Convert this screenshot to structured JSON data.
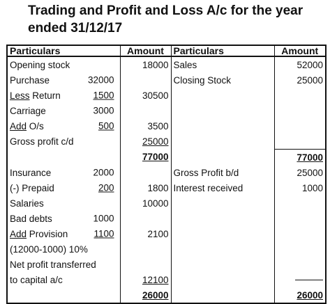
{
  "title": {
    "line1": "Trading and Profit and Loss A/c for the year",
    "line2": "ended 31/12/17"
  },
  "headers": {
    "left_particulars": "Particulars",
    "left_amount": "Amount",
    "right_particulars": "Particulars",
    "right_amount": "Amount"
  },
  "rows": [
    {
      "lp": "Opening stock",
      "lsub": "",
      "la": "18000",
      "rp": "Sales",
      "ra": "52000"
    },
    {
      "lp": "Purchase",
      "lsub": "32000",
      "la": "",
      "rp": "Closing Stock",
      "ra": "25000"
    },
    {
      "lp_u": "Less",
      "lp": " Return",
      "lsub": "1500",
      "la": "30500",
      "rp": "",
      "ra": ""
    },
    {
      "lp": "Carriage",
      "lsub": "3000",
      "la": "",
      "rp": "",
      "ra": ""
    },
    {
      "lp_u": "Add",
      "lp": " O/s",
      "lsub": "500",
      "la": "3500",
      "rp": "",
      "ra": ""
    },
    {
      "lp": "Gross profit c/d",
      "lsub": "",
      "la": "25000",
      "rp": "",
      "ra": ""
    },
    {
      "lp": "",
      "lsub": "",
      "la": "77000",
      "rp": "",
      "ra": "77000"
    },
    {
      "lp": "Insurance",
      "lsub": "2000",
      "la": "",
      "rp": "Gross Profit b/d",
      "ra": "25000"
    },
    {
      "lp": "(-) Prepaid",
      "lsub": "200",
      "la": "1800",
      "rp": "Interest received",
      "ra": "1000"
    },
    {
      "lp": "Salaries",
      "lsub": "",
      "la": "10000",
      "rp": "",
      "ra": ""
    },
    {
      "lp": "Bad debts",
      "lsub": "1000",
      "la": "",
      "rp": "",
      "ra": ""
    },
    {
      "lp_u": "Add",
      "lp": " Provision",
      "lsub": "1100",
      "la": "2100",
      "rp": "",
      "ra": ""
    },
    {
      "lp": "(12000-1000) 10%",
      "lsub": "",
      "la": "",
      "rp": "",
      "ra": ""
    },
    {
      "lp": "Net profit transferred",
      "lsub": "",
      "la": "",
      "rp": "",
      "ra": ""
    },
    {
      "lp": "to capital a/c",
      "lsub": "",
      "la": "12100",
      "rp": "",
      "ra": ""
    },
    {
      "lp": "",
      "lsub": "",
      "la": "26000",
      "rp": "",
      "ra": "26000"
    }
  ]
}
